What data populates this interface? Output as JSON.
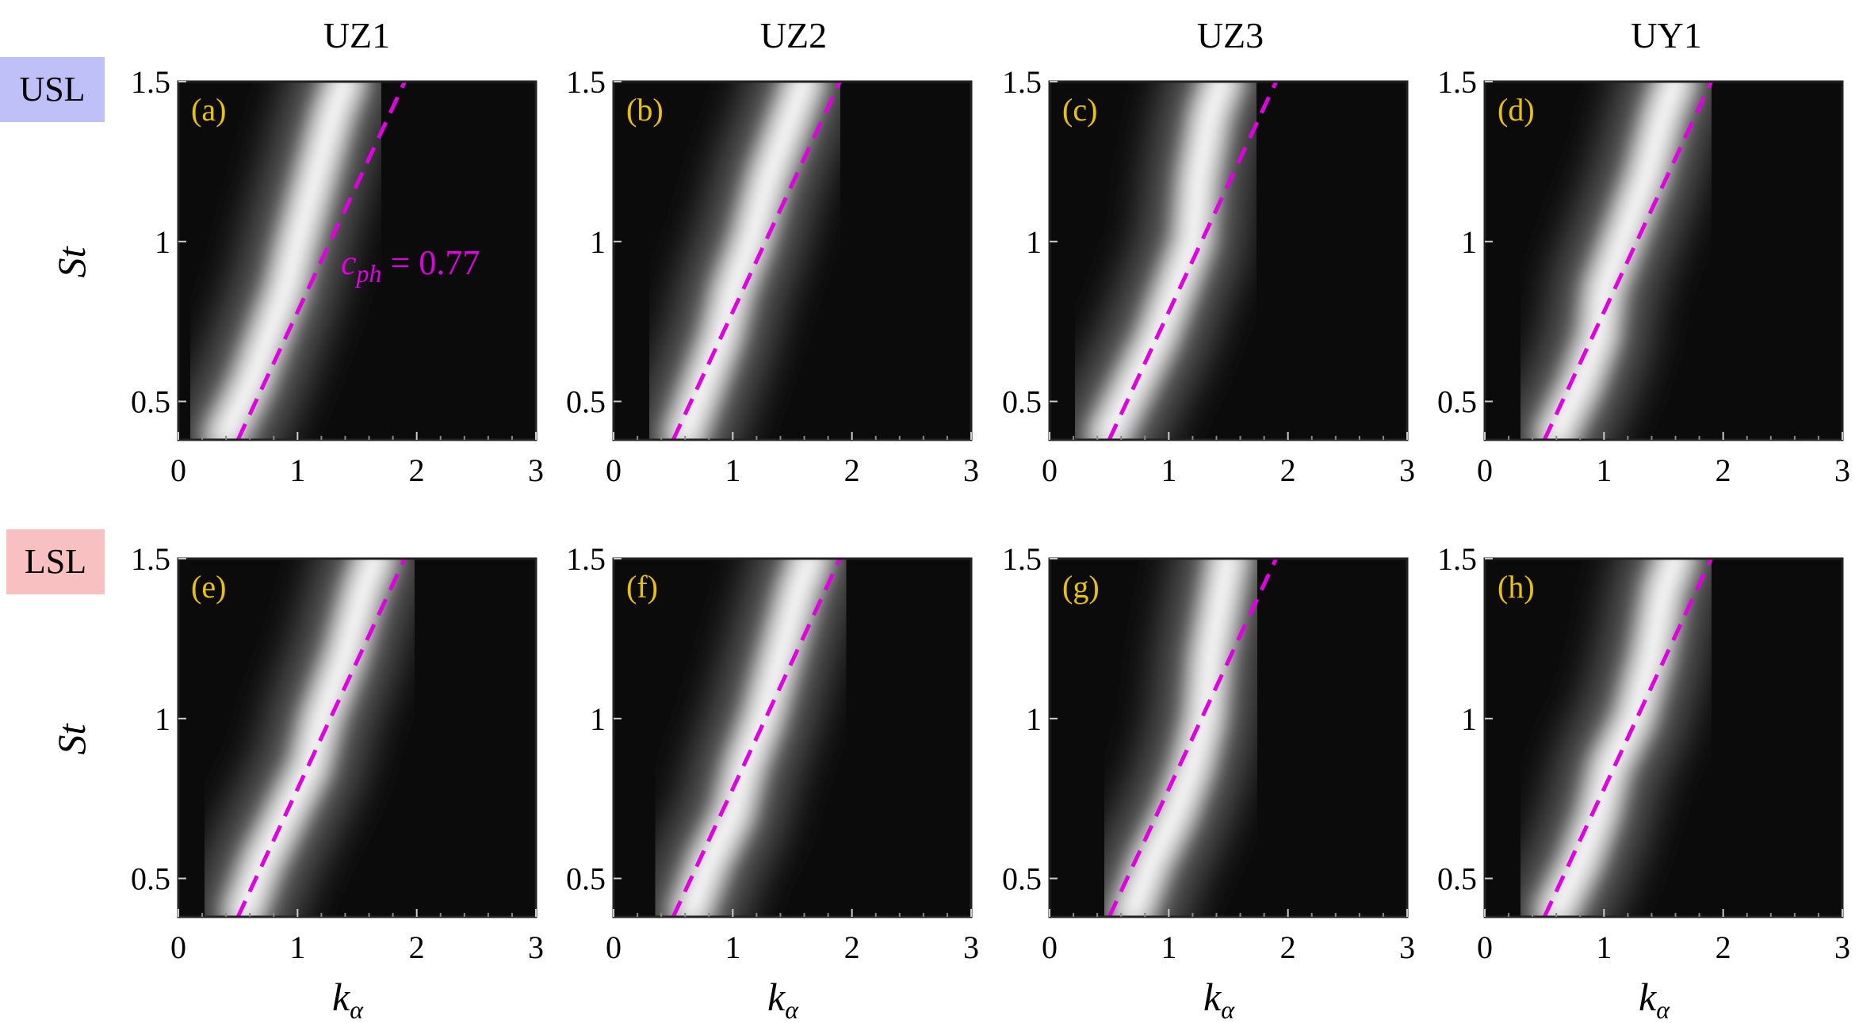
{
  "column_titles": [
    "UZ1",
    "UZ2",
    "UZ3",
    "UY1"
  ],
  "row_labels": [
    {
      "text": "USL",
      "color": "#c0c0f8"
    },
    {
      "text": "LSL",
      "color": "#f8c0c0"
    }
  ],
  "x_label": {
    "main": "k",
    "sub": "α"
  },
  "y_label": "St",
  "annotation": {
    "main": "c",
    "sub": "ph",
    "rest": " = 0.77"
  },
  "colors": {
    "dashed_line": "#e000e0",
    "panel_label": "#e8c400",
    "background": "#0b0b0b"
  },
  "chart_data": [
    {
      "type": "heatmap",
      "panel": "(a)",
      "row": "USL",
      "column": "UZ1",
      "ridge": [
        [
          0.4,
          0.4
        ],
        [
          0.6,
          0.55
        ],
        [
          0.75,
          0.7
        ],
        [
          0.9,
          0.85
        ],
        [
          1.0,
          1.0
        ],
        [
          1.15,
          1.2
        ],
        [
          1.3,
          1.4
        ],
        [
          1.4,
          1.5
        ]
      ]
    },
    {
      "type": "heatmap",
      "panel": "(b)",
      "row": "USL",
      "column": "UZ2",
      "ridge": [
        [
          0.6,
          0.4
        ],
        [
          0.75,
          0.55
        ],
        [
          0.9,
          0.7
        ],
        [
          1.0,
          0.85
        ],
        [
          1.15,
          1.0
        ],
        [
          1.3,
          1.2
        ],
        [
          1.5,
          1.4
        ],
        [
          1.6,
          1.5
        ]
      ]
    },
    {
      "type": "heatmap",
      "panel": "(c)",
      "row": "USL",
      "column": "UZ3",
      "ridge": [
        [
          0.5,
          0.4
        ],
        [
          0.7,
          0.55
        ],
        [
          0.9,
          0.7
        ],
        [
          1.05,
          0.85
        ],
        [
          1.2,
          1.0
        ],
        [
          1.25,
          1.2
        ],
        [
          1.35,
          1.4
        ],
        [
          1.45,
          1.5
        ]
      ]
    },
    {
      "type": "heatmap",
      "panel": "(d)",
      "row": "USL",
      "column": "UY1",
      "ridge": [
        [
          0.6,
          0.4
        ],
        [
          0.8,
          0.55
        ],
        [
          0.95,
          0.7
        ],
        [
          1.0,
          0.85
        ],
        [
          1.15,
          1.0
        ],
        [
          1.35,
          1.2
        ],
        [
          1.5,
          1.4
        ],
        [
          1.6,
          1.5
        ]
      ]
    },
    {
      "type": "heatmap",
      "panel": "(e)",
      "row": "LSL",
      "column": "UZ1",
      "ridge": [
        [
          0.55,
          0.4
        ],
        [
          0.7,
          0.55
        ],
        [
          0.9,
          0.7
        ],
        [
          1.1,
          0.85
        ],
        [
          1.2,
          1.0
        ],
        [
          1.4,
          1.2
        ],
        [
          1.55,
          1.4
        ],
        [
          1.65,
          1.5
        ]
      ]
    },
    {
      "type": "heatmap",
      "panel": "(f)",
      "row": "LSL",
      "column": "UZ2",
      "ridge": [
        [
          0.65,
          0.4
        ],
        [
          0.8,
          0.55
        ],
        [
          1.0,
          0.7
        ],
        [
          1.1,
          0.85
        ],
        [
          1.25,
          1.0
        ],
        [
          1.4,
          1.2
        ],
        [
          1.55,
          1.4
        ],
        [
          1.65,
          1.5
        ]
      ]
    },
    {
      "type": "heatmap",
      "panel": "(g)",
      "row": "LSL",
      "column": "UZ3",
      "ridge": [
        [
          0.7,
          0.4
        ],
        [
          0.85,
          0.55
        ],
        [
          1.05,
          0.7
        ],
        [
          1.2,
          0.85
        ],
        [
          1.3,
          1.0
        ],
        [
          1.35,
          1.2
        ],
        [
          1.45,
          1.4
        ],
        [
          1.5,
          1.5
        ]
      ]
    },
    {
      "type": "heatmap",
      "panel": "(h)",
      "row": "LSL",
      "column": "UY1",
      "ridge": [
        [
          0.6,
          0.4
        ],
        [
          0.8,
          0.55
        ],
        [
          0.95,
          0.7
        ],
        [
          1.05,
          0.85
        ],
        [
          1.25,
          1.0
        ],
        [
          1.4,
          1.2
        ],
        [
          1.5,
          1.4
        ],
        [
          1.6,
          1.5
        ]
      ]
    }
  ],
  "dashed_line": {
    "x": [
      0.5,
      1.9
    ],
    "y": [
      0.38,
      1.5
    ]
  },
  "axes": {
    "xlim": [
      0,
      3
    ],
    "ylim": [
      0.38,
      1.5
    ],
    "xticks": [
      0,
      1,
      2,
      3
    ],
    "xtick_labels": [
      "0",
      "1",
      "2",
      "3"
    ],
    "yticks": [
      0.5,
      1,
      1.5
    ],
    "ytick_labels": [
      "0.5",
      "1",
      "1.5"
    ]
  }
}
